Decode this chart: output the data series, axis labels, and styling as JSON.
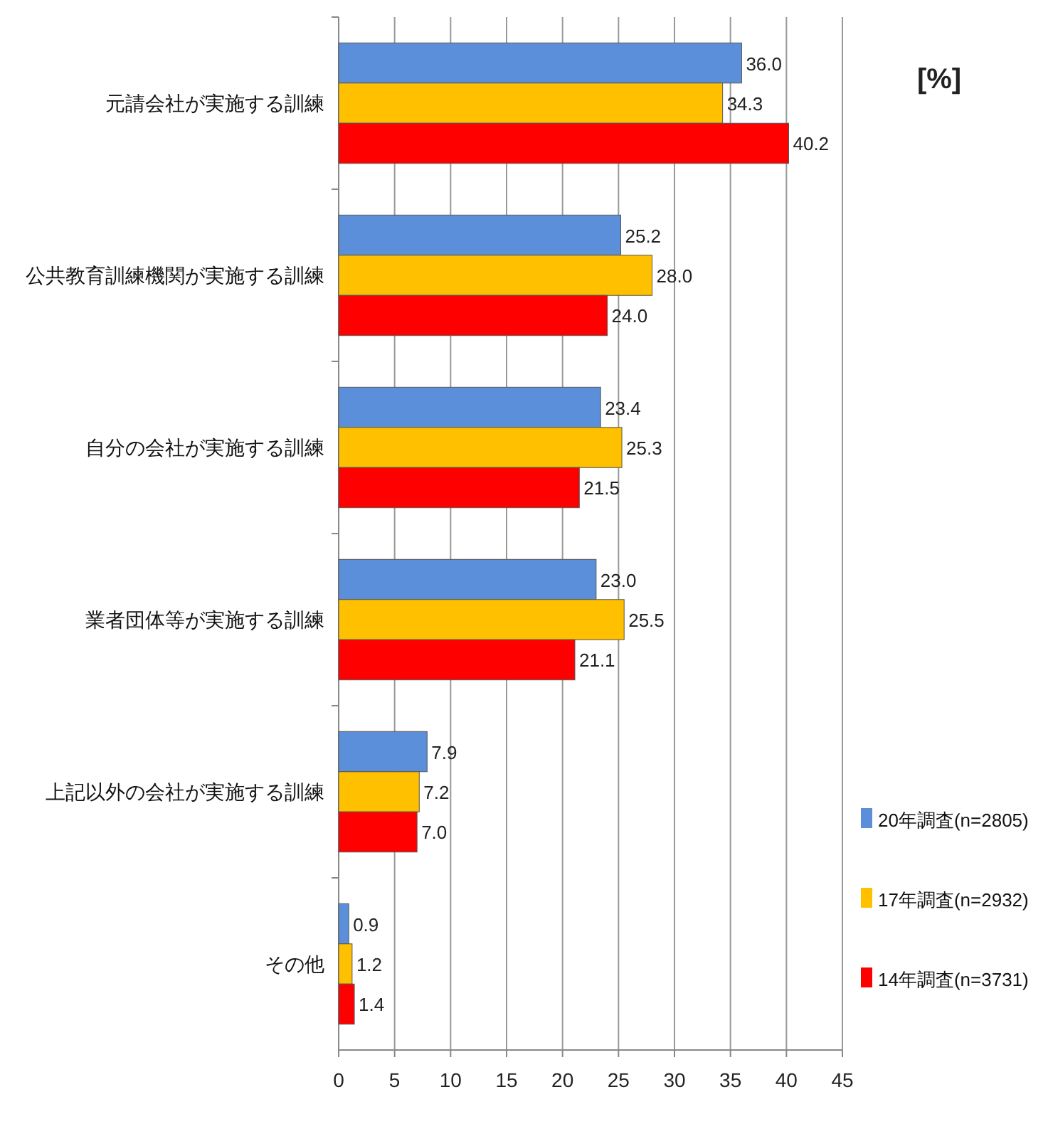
{
  "chart_data": {
    "type": "bar",
    "orientation": "horizontal",
    "categories": [
      "元請会社が実施する訓練",
      "公共教育訓練機関が実施する訓練",
      "自分の会社が実施する訓練",
      "業者団体等が実施する訓練",
      "上記以外の会社が実施する訓練",
      "その他"
    ],
    "series": [
      {
        "name": "20年調査(n=2805)",
        "color": "#5b8fd9",
        "values": [
          36.0,
          25.2,
          23.4,
          23.0,
          7.9,
          0.9
        ],
        "value_labels": [
          "36.0",
          "25.2",
          "23.4",
          "23.0",
          "7.9",
          "0.9"
        ]
      },
      {
        "name": "17年調査(n=2932)",
        "color": "#ffc000",
        "values": [
          34.3,
          28.0,
          25.3,
          25.5,
          7.2,
          1.2
        ],
        "value_labels": [
          "34.3",
          "28.0",
          "25.3",
          "25.5",
          "7.2",
          "1.2"
        ]
      },
      {
        "name": "14年調査(n=3731)",
        "color": "#ff0000",
        "values": [
          40.2,
          24.0,
          21.5,
          21.1,
          7.0,
          1.4
        ],
        "value_labels": [
          "40.2",
          "24.0",
          "21.5",
          "21.1",
          "7.0",
          "1.4"
        ]
      }
    ],
    "xlim": [
      0,
      45
    ],
    "xticks": [
      0,
      5,
      10,
      15,
      20,
      25,
      30,
      35,
      40,
      45
    ],
    "grid": "x",
    "legend": "bottom right",
    "annotations": [
      "[%]"
    ]
  }
}
